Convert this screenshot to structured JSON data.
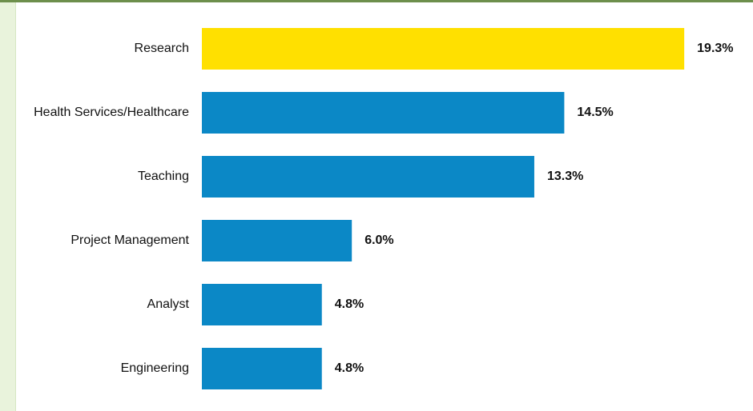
{
  "chart_data": {
    "type": "bar",
    "orientation": "horizontal",
    "categories": [
      "Research",
      "Health Services/Healthcare",
      "Teaching",
      "Project Management",
      "Analyst",
      "Engineering"
    ],
    "values": [
      19.3,
      14.5,
      13.3,
      6.0,
      4.8,
      4.8
    ],
    "value_labels": [
      "19.3%",
      "14.5%",
      "13.3%",
      "6.0%",
      "4.8%",
      "4.8%"
    ],
    "highlight_index": 0,
    "title": "",
    "xlabel": "",
    "ylabel": "",
    "xlim": [
      0,
      20
    ],
    "grid": false,
    "legend": "none"
  },
  "colors": {
    "highlight": "#ffe000",
    "bar": "#0b88c6",
    "frame_stripe": "#e9f3dc",
    "frame_rule": "#6d8f4c"
  }
}
